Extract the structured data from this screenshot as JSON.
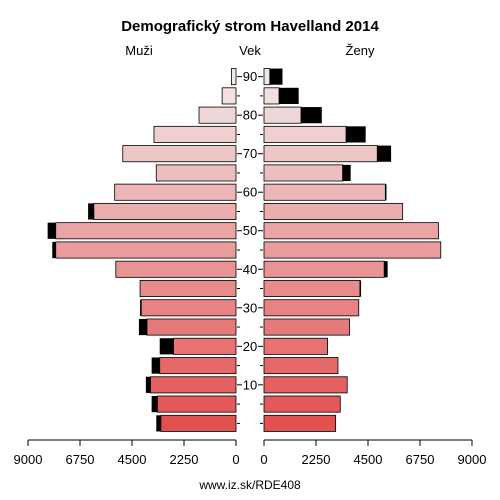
{
  "chart_data": {
    "type": "bar",
    "title": "Demografický strom Havelland 2014",
    "left_label": "Muži",
    "center_label": "Vek",
    "right_label": "Ženy",
    "footer": "www.iz.sk/RDE408",
    "age_tick_labels": [
      "10",
      "20",
      "30",
      "40",
      "50",
      "60",
      "70",
      "80",
      "90"
    ],
    "x_tick_labels": [
      "9000",
      "6750",
      "4500",
      "2250",
      "0",
      "2250",
      "4500",
      "6750",
      "9000"
    ],
    "xlim": [
      0,
      9000
    ],
    "age_groups": [
      "0-4",
      "5-9",
      "10-14",
      "15-19",
      "20-24",
      "25-29",
      "30-34",
      "35-39",
      "40-44",
      "45-49",
      "50-54",
      "55-59",
      "60-64",
      "65-69",
      "70-74",
      "75-79",
      "80-84",
      "85-89",
      "90+"
    ],
    "series": [
      {
        "name": "Muži",
        "values": [
          3250,
          3400,
          3700,
          3300,
          2700,
          3850,
          4100,
          4150,
          5200,
          7800,
          7800,
          6150,
          5250,
          3450,
          4900,
          3550,
          1600,
          600,
          200
        ],
        "surplus": [
          200,
          250,
          200,
          350,
          600,
          350,
          50,
          0,
          0,
          150,
          350,
          250,
          0,
          0,
          0,
          0,
          0,
          0,
          0
        ]
      },
      {
        "name": "Ženy",
        "values": [
          3100,
          3300,
          3600,
          3200,
          2750,
          3700,
          4100,
          4150,
          5200,
          7650,
          7550,
          6000,
          5250,
          3400,
          4900,
          3550,
          1600,
          650,
          250
        ],
        "surplus": [
          0,
          0,
          0,
          0,
          0,
          0,
          0,
          50,
          150,
          0,
          0,
          0,
          50,
          350,
          600,
          850,
          900,
          850,
          550
        ]
      }
    ]
  }
}
